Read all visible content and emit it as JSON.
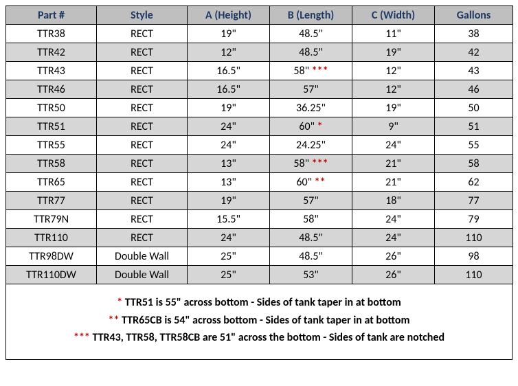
{
  "table": {
    "header_bg": "#bfbfbf",
    "header_color": "#1f3864",
    "shaded_bg": "#d6d6d6",
    "border_color": "#000000",
    "asterisk_color": "#c00000",
    "columns": [
      "Part #",
      "Style",
      "A (Height)",
      "B (Length)",
      "C (Width)",
      "Gallons"
    ],
    "rows": [
      {
        "part": "TTR38",
        "style": "RECT",
        "height": "19\"",
        "length": "48.5\"",
        "ast": "",
        "width": "11\"",
        "gallons": "38",
        "shaded": false
      },
      {
        "part": "TTR42",
        "style": "RECT",
        "height": "12\"",
        "length": "48.5\"",
        "ast": "",
        "width": "19\"",
        "gallons": "42",
        "shaded": true
      },
      {
        "part": "TTR43",
        "style": "RECT",
        "height": "16.5\"",
        "length": "58\" ",
        "ast": "***",
        "width": "12\"",
        "gallons": "43",
        "shaded": false
      },
      {
        "part": "TTR46",
        "style": "RECT",
        "height": "16.5\"",
        "length": "57\"",
        "ast": "",
        "width": "12\"",
        "gallons": "46",
        "shaded": true
      },
      {
        "part": "TTR50",
        "style": "RECT",
        "height": "19\"",
        "length": "36.25\"",
        "ast": "",
        "width": "19\"",
        "gallons": "50",
        "shaded": false
      },
      {
        "part": "TTR51",
        "style": "RECT",
        "height": "24\"",
        "length": "60\" ",
        "ast": "*",
        "width": "9\"",
        "gallons": "51",
        "shaded": true
      },
      {
        "part": "TTR55",
        "style": "RECT",
        "height": "24\"",
        "length": "24.25\"",
        "ast": "",
        "width": "24\"",
        "gallons": "55",
        "shaded": false
      },
      {
        "part": "TTR58",
        "style": "RECT",
        "height": "13\"",
        "length": "58\" ",
        "ast": "***",
        "width": "21\"",
        "gallons": "58",
        "shaded": true
      },
      {
        "part": "TTR65",
        "style": "RECT",
        "height": "13\"",
        "length": "60\" ",
        "ast": "**",
        "width": "21\"",
        "gallons": "62",
        "shaded": false
      },
      {
        "part": "TTR77",
        "style": "RECT",
        "height": "19\"",
        "length": "57\"",
        "ast": "",
        "width": "18\"",
        "gallons": "77",
        "shaded": true
      },
      {
        "part": "TTR79N",
        "style": "RECT",
        "height": "15.5\"",
        "length": "58\"",
        "ast": "",
        "width": "24\"",
        "gallons": "79",
        "shaded": false
      },
      {
        "part": "TTR110",
        "style": "RECT",
        "height": "24\"",
        "length": "48.5\"",
        "ast": "",
        "width": "24\"",
        "gallons": "110",
        "shaded": true
      },
      {
        "part": "TTR98DW",
        "style": "Double Wall",
        "height": "25\"",
        "length": "48.5\"",
        "ast": "",
        "width": "26\"",
        "gallons": "98",
        "shaded": false
      },
      {
        "part": "TTR110DW",
        "style": "Double Wall",
        "height": "25\"",
        "length": "53\"",
        "ast": "",
        "width": "26\"",
        "gallons": "110",
        "shaded": true
      }
    ]
  },
  "footnotes": [
    {
      "marker": "*",
      "text": " TTR51 is 55\" across bottom - Sides of tank taper in at bottom"
    },
    {
      "marker": "**",
      "text": " TTR65CB is 54\" across bottom - Sides of tank taper in at bottom"
    },
    {
      "marker": "***",
      "text": " TTR43, TTR58, TTR58CB are 51\" across the bottom - Sides of tank are notched"
    }
  ]
}
